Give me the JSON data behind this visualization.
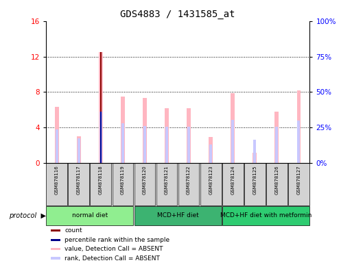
{
  "title": "GDS4883 / 1431585_at",
  "samples": [
    "GSM878116",
    "GSM878117",
    "GSM878118",
    "GSM878119",
    "GSM878120",
    "GSM878121",
    "GSM878122",
    "GSM878123",
    "GSM878124",
    "GSM878125",
    "GSM878126",
    "GSM878127"
  ],
  "value_absent": [
    6.3,
    3.0,
    12.5,
    7.5,
    7.3,
    6.2,
    6.2,
    2.9,
    7.9,
    1.2,
    5.8,
    8.2
  ],
  "rank_absent": [
    3.8,
    2.8,
    5.8,
    4.5,
    4.2,
    4.1,
    4.1,
    2.1,
    4.9,
    2.6,
    4.1,
    4.8
  ],
  "count": [
    0,
    0,
    12.5,
    0,
    0,
    0,
    0,
    0,
    0,
    0,
    0,
    0
  ],
  "percentile": [
    0,
    0,
    5.8,
    0,
    0,
    0,
    0,
    0,
    0,
    0,
    0,
    0
  ],
  "ylim_left": [
    0,
    16
  ],
  "ylim_right": [
    0,
    100
  ],
  "yticks_left": [
    0,
    4,
    8,
    12,
    16
  ],
  "yticks_right": [
    0,
    25,
    50,
    75,
    100
  ],
  "ytick_labels_right": [
    "0%",
    "25%",
    "50%",
    "75%",
    "100%"
  ],
  "color_value_absent": "#ffb6c1",
  "color_rank_absent": "#c8c8ff",
  "color_count": "#8b0000",
  "color_percentile": "#00008b",
  "background_color": "#ffffff",
  "sample_box_color": "#d3d3d3",
  "title_fontsize": 10,
  "group_colors": [
    "#90ee90",
    "#3cb371",
    "#2ecc71"
  ],
  "group_labels": [
    "normal diet",
    "MCD+HF diet",
    "MCD+HF diet with metformin"
  ],
  "group_starts": [
    0,
    4,
    8
  ],
  "group_ends": [
    3,
    7,
    11
  ],
  "legend_colors": [
    "#8b0000",
    "#00008b",
    "#ffb6c1",
    "#c8c8ff"
  ],
  "legend_labels": [
    "count",
    "percentile rank within the sample",
    "value, Detection Call = ABSENT",
    "rank, Detection Call = ABSENT"
  ]
}
